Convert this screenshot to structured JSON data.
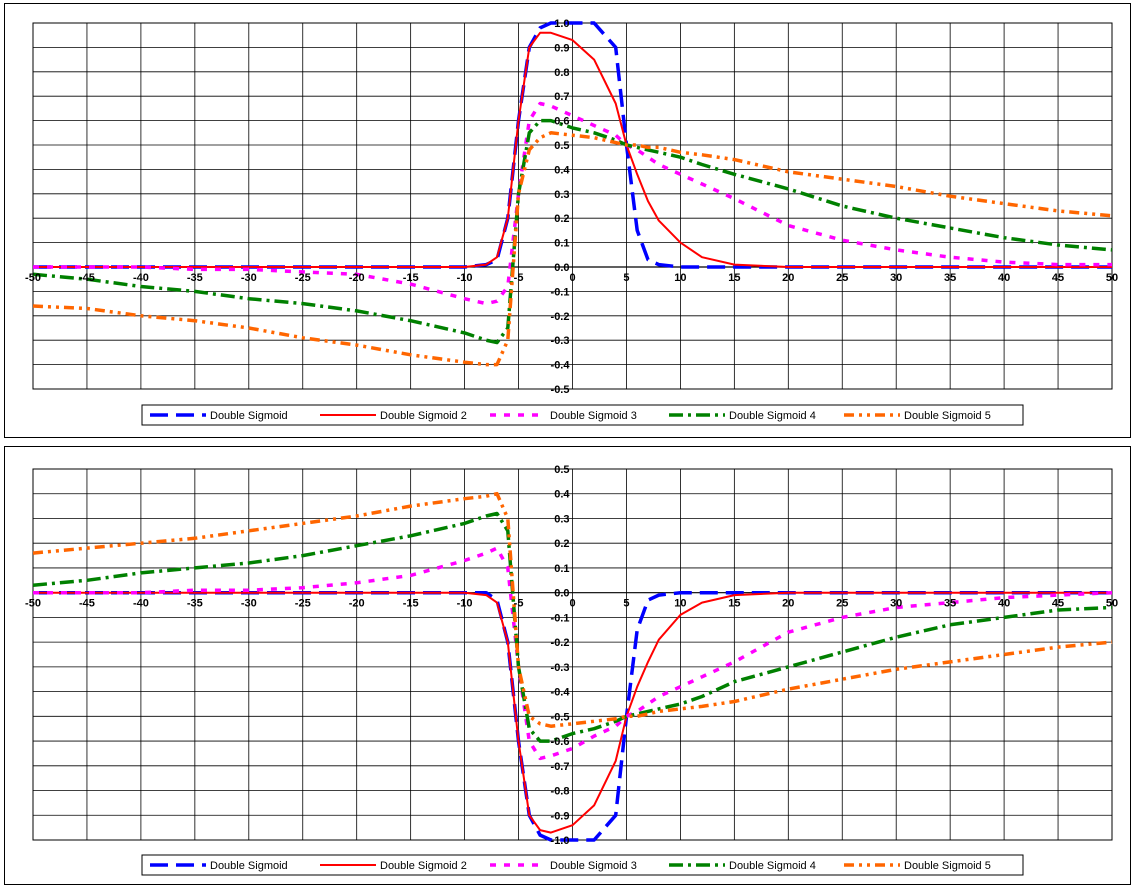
{
  "chart_data": [
    {
      "type": "line",
      "title": "",
      "xlabel": "",
      "ylabel": "",
      "xlim": [
        -50,
        50
      ],
      "ylim": [
        -0.5,
        1.0
      ],
      "xticks": [
        "-50",
        "-45",
        "-40",
        "-35",
        "-30",
        "-25",
        "-20",
        "-15",
        "-10",
        "-5",
        "0",
        "5",
        "10",
        "15",
        "20",
        "25",
        "30",
        "35",
        "40",
        "45",
        "50"
      ],
      "yticks": [
        "-0.5",
        "-0.4",
        "-0.3",
        "-0.2",
        "-0.1",
        "0.0",
        "0.1",
        "0.2",
        "0.3",
        "0.4",
        "0.5",
        "0.6",
        "0.7",
        "0.8",
        "0.9",
        "1.0"
      ],
      "grid": true,
      "legend_position": "bottom",
      "x": [
        -50,
        -45,
        -40,
        -35,
        -30,
        -25,
        -20,
        -15,
        -10,
        -8,
        -7,
        -6,
        -5,
        -4,
        -3,
        -2,
        0,
        2,
        4,
        5,
        6,
        7,
        8,
        10,
        12,
        15,
        20,
        25,
        30,
        35,
        40,
        45,
        50
      ],
      "series": [
        {
          "name": "Double Sigmoid",
          "color": "#0000ff",
          "values": [
            0,
            0,
            0,
            0,
            0,
            0,
            0,
            0,
            0,
            0.01,
            0.03,
            0.2,
            0.6,
            0.9,
            0.98,
            1.0,
            1.0,
            1.0,
            0.9,
            0.5,
            0.15,
            0.03,
            0.01,
            0,
            0,
            0,
            0,
            0,
            0,
            0,
            0,
            0,
            0
          ]
        },
        {
          "name": "Double Sigmoid 2",
          "color": "#ff0000",
          "values": [
            0,
            0,
            0,
            0,
            0,
            0,
            0,
            0,
            0,
            0.01,
            0.04,
            0.2,
            0.6,
            0.9,
            0.96,
            0.96,
            0.93,
            0.85,
            0.67,
            0.5,
            0.38,
            0.27,
            0.19,
            0.1,
            0.04,
            0.01,
            0,
            0,
            0,
            0,
            0,
            0,
            0
          ]
        },
        {
          "name": "Double Sigmoid 3",
          "color": "#ff00ff",
          "values": [
            0,
            0,
            0,
            -0.01,
            -0.01,
            -0.02,
            -0.03,
            -0.07,
            -0.13,
            -0.15,
            -0.14,
            -0.08,
            0.3,
            0.6,
            0.67,
            0.66,
            0.62,
            0.58,
            0.54,
            0.5,
            0.48,
            0.45,
            0.42,
            0.38,
            0.34,
            0.28,
            0.17,
            0.11,
            0.07,
            0.04,
            0.02,
            0.01,
            0.01
          ]
        },
        {
          "name": "Double Sigmoid 4",
          "color": "#008000",
          "values": [
            -0.03,
            -0.05,
            -0.08,
            -0.1,
            -0.13,
            -0.15,
            -0.18,
            -0.22,
            -0.27,
            -0.3,
            -0.31,
            -0.25,
            0.3,
            0.55,
            0.6,
            0.6,
            0.57,
            0.55,
            0.52,
            0.5,
            0.49,
            0.48,
            0.47,
            0.45,
            0.42,
            0.38,
            0.32,
            0.25,
            0.2,
            0.16,
            0.12,
            0.09,
            0.07
          ]
        },
        {
          "name": "Double Sigmoid 5",
          "color": "#ff6600",
          "values": [
            -0.16,
            -0.17,
            -0.2,
            -0.22,
            -0.25,
            -0.29,
            -0.32,
            -0.36,
            -0.39,
            -0.4,
            -0.4,
            -0.3,
            0.3,
            0.48,
            0.53,
            0.55,
            0.54,
            0.53,
            0.51,
            0.5,
            0.5,
            0.49,
            0.49,
            0.47,
            0.46,
            0.44,
            0.39,
            0.36,
            0.33,
            0.29,
            0.26,
            0.23,
            0.21
          ]
        }
      ]
    },
    {
      "type": "line",
      "title": "",
      "xlabel": "",
      "ylabel": "",
      "xlim": [
        -50,
        50
      ],
      "ylim": [
        -1.0,
        0.5
      ],
      "xticks": [
        "-50",
        "-45",
        "-40",
        "-35",
        "-30",
        "-25",
        "-20",
        "-15",
        "-10",
        "-5",
        "0",
        "5",
        "10",
        "15",
        "20",
        "25",
        "30",
        "35",
        "40",
        "45",
        "50"
      ],
      "yticks": [
        "-1.0",
        "-0.9",
        "-0.8",
        "-0.7",
        "-0.6",
        "-0.5",
        "-0.4",
        "-0.3",
        "-0.2",
        "-0.1",
        "0.0",
        "0.1",
        "0.2",
        "0.3",
        "0.4",
        "0.5"
      ],
      "grid": true,
      "legend_position": "bottom",
      "x": [
        -50,
        -45,
        -40,
        -35,
        -30,
        -25,
        -20,
        -15,
        -10,
        -8,
        -7,
        -6,
        -5,
        -4,
        -3,
        -2,
        0,
        2,
        4,
        5,
        6,
        7,
        8,
        10,
        12,
        15,
        20,
        25,
        30,
        35,
        40,
        45,
        50
      ],
      "series": [
        {
          "name": "Double Sigmoid",
          "color": "#0000ff",
          "values": [
            0,
            0,
            0,
            0,
            0,
            0,
            0,
            0,
            0,
            0,
            -0.03,
            -0.2,
            -0.6,
            -0.9,
            -0.98,
            -1.0,
            -1.0,
            -1.0,
            -0.9,
            -0.5,
            -0.15,
            -0.03,
            -0.01,
            0,
            0,
            0,
            0,
            0,
            0,
            0,
            0,
            0,
            0
          ]
        },
        {
          "name": "Double Sigmoid 2",
          "color": "#ff0000",
          "values": [
            0,
            0,
            0,
            0,
            0,
            0,
            0,
            0,
            0,
            -0.01,
            -0.04,
            -0.2,
            -0.6,
            -0.9,
            -0.96,
            -0.97,
            -0.94,
            -0.86,
            -0.68,
            -0.5,
            -0.38,
            -0.28,
            -0.19,
            -0.09,
            -0.04,
            -0.01,
            0,
            0,
            0,
            0,
            0,
            0,
            0
          ]
        },
        {
          "name": "Double Sigmoid 3",
          "color": "#ff00ff",
          "values": [
            0,
            0,
            0,
            0.01,
            0.01,
            0.02,
            0.04,
            0.07,
            0.13,
            0.16,
            0.18,
            0.1,
            -0.3,
            -0.6,
            -0.67,
            -0.66,
            -0.63,
            -0.58,
            -0.54,
            -0.5,
            -0.48,
            -0.45,
            -0.42,
            -0.38,
            -0.34,
            -0.28,
            -0.16,
            -0.1,
            -0.06,
            -0.04,
            -0.02,
            -0.01,
            0
          ]
        },
        {
          "name": "Double Sigmoid 4",
          "color": "#008000",
          "values": [
            0.03,
            0.05,
            0.08,
            0.1,
            0.12,
            0.15,
            0.19,
            0.23,
            0.28,
            0.31,
            0.32,
            0.25,
            -0.3,
            -0.55,
            -0.6,
            -0.6,
            -0.57,
            -0.55,
            -0.52,
            -0.5,
            -0.49,
            -0.48,
            -0.47,
            -0.45,
            -0.42,
            -0.36,
            -0.3,
            -0.24,
            -0.18,
            -0.13,
            -0.1,
            -0.07,
            -0.06
          ]
        },
        {
          "name": "Double Sigmoid 5",
          "color": "#ff6600",
          "values": [
            0.16,
            0.18,
            0.2,
            0.22,
            0.25,
            0.28,
            0.31,
            0.35,
            0.38,
            0.39,
            0.4,
            0.3,
            -0.3,
            -0.5,
            -0.53,
            -0.54,
            -0.53,
            -0.52,
            -0.51,
            -0.5,
            -0.5,
            -0.49,
            -0.48,
            -0.47,
            -0.46,
            -0.44,
            -0.39,
            -0.35,
            -0.31,
            -0.28,
            -0.25,
            -0.22,
            -0.2
          ]
        }
      ]
    }
  ]
}
